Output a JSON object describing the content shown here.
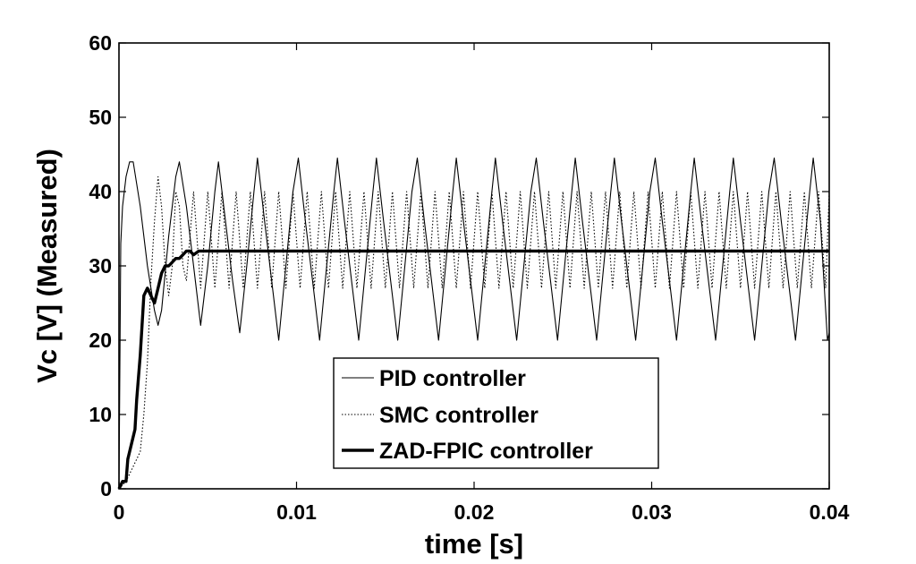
{
  "chart_data": {
    "type": "line",
    "title": "",
    "xlabel": "time [s]",
    "ylabel": "Vc [V] (Measured)",
    "xlim": [
      0,
      0.04
    ],
    "ylim": [
      0,
      60
    ],
    "xticks": [
      0,
      0.01,
      0.02,
      0.03,
      0.04
    ],
    "xtick_labels": [
      "0",
      "0.01",
      "0.02",
      "0.03",
      "0.04"
    ],
    "yticks": [
      0,
      10,
      20,
      30,
      40,
      50,
      60
    ],
    "ytick_labels": [
      "0",
      "10",
      "20",
      "30",
      "40",
      "50",
      "60"
    ],
    "grid": false,
    "legend_position": "bottom-center",
    "series": [
      {
        "name": "PID controller",
        "style": "solid-thin",
        "color": "#000000",
        "points": [
          [
            0,
            0
          ],
          [
            0.0001,
            33
          ],
          [
            0.0002,
            38
          ],
          [
            0.0004,
            42
          ],
          [
            0.0006,
            44
          ],
          [
            0.0008,
            44
          ],
          [
            0.0012,
            38
          ],
          [
            0.0016,
            30
          ],
          [
            0.002,
            24
          ],
          [
            0.0022,
            22
          ],
          [
            0.0024,
            24
          ],
          [
            0.0028,
            34
          ],
          [
            0.0032,
            42
          ],
          [
            0.0034,
            44
          ],
          [
            0.0038,
            38
          ],
          [
            0.0042,
            30
          ],
          [
            0.0046,
            22
          ],
          [
            0.005,
            30
          ],
          [
            0.0054,
            40
          ],
          [
            0.0056,
            44
          ],
          [
            0.006,
            36
          ],
          [
            0.0064,
            28
          ],
          [
            0.0068,
            21
          ],
          [
            0.0072,
            30
          ],
          [
            0.0076,
            40
          ],
          [
            0.0078,
            44.5
          ],
          [
            0.0082,
            36
          ],
          [
            0.0086,
            28
          ],
          [
            0.009,
            20
          ],
          [
            0.0094,
            30
          ],
          [
            0.0098,
            40
          ],
          [
            0.0101,
            44.5
          ],
          [
            0.0105,
            36
          ],
          [
            0.0109,
            28
          ],
          [
            0.0113,
            20
          ],
          [
            0.0117,
            30
          ],
          [
            0.0121,
            40
          ],
          [
            0.0123,
            44.5
          ],
          [
            0.0127,
            36
          ],
          [
            0.0131,
            28
          ],
          [
            0.0135,
            20
          ],
          [
            0.0139,
            30
          ],
          [
            0.0143,
            40
          ],
          [
            0.0145,
            44.5
          ],
          [
            0.0149,
            36
          ],
          [
            0.0153,
            28
          ],
          [
            0.0157,
            20
          ],
          [
            0.0161,
            30
          ],
          [
            0.0165,
            40
          ],
          [
            0.0168,
            44.5
          ],
          [
            0.0172,
            36
          ],
          [
            0.0176,
            28
          ],
          [
            0.018,
            20
          ],
          [
            0.0184,
            30
          ],
          [
            0.0188,
            40
          ],
          [
            0.019,
            44.5
          ],
          [
            0.0194,
            36
          ],
          [
            0.0198,
            28
          ],
          [
            0.0202,
            20
          ],
          [
            0.0206,
            30
          ],
          [
            0.021,
            40
          ],
          [
            0.0212,
            44.5
          ],
          [
            0.0216,
            36
          ],
          [
            0.022,
            28
          ],
          [
            0.0224,
            20
          ],
          [
            0.0228,
            30
          ],
          [
            0.0232,
            40
          ],
          [
            0.0235,
            44.5
          ],
          [
            0.0239,
            36
          ],
          [
            0.0243,
            28
          ],
          [
            0.0247,
            20
          ],
          [
            0.0251,
            30
          ],
          [
            0.0255,
            40
          ],
          [
            0.0257,
            44.5
          ],
          [
            0.0261,
            36
          ],
          [
            0.0265,
            28
          ],
          [
            0.0269,
            20
          ],
          [
            0.0273,
            30
          ],
          [
            0.0277,
            40
          ],
          [
            0.0279,
            44.5
          ],
          [
            0.0283,
            36
          ],
          [
            0.0287,
            28
          ],
          [
            0.0291,
            20
          ],
          [
            0.0295,
            30
          ],
          [
            0.0299,
            40
          ],
          [
            0.0302,
            44.5
          ],
          [
            0.0306,
            36
          ],
          [
            0.031,
            28
          ],
          [
            0.0314,
            20
          ],
          [
            0.0318,
            30
          ],
          [
            0.0322,
            40
          ],
          [
            0.0324,
            44.5
          ],
          [
            0.0328,
            36
          ],
          [
            0.0332,
            28
          ],
          [
            0.0336,
            20
          ],
          [
            0.034,
            30
          ],
          [
            0.0344,
            40
          ],
          [
            0.0346,
            44.5
          ],
          [
            0.035,
            36
          ],
          [
            0.0354,
            28
          ],
          [
            0.0358,
            20
          ],
          [
            0.0362,
            30
          ],
          [
            0.0366,
            40
          ],
          [
            0.0369,
            44.5
          ],
          [
            0.0373,
            36
          ],
          [
            0.0377,
            28
          ],
          [
            0.0381,
            20
          ],
          [
            0.0385,
            30
          ],
          [
            0.0389,
            40
          ],
          [
            0.0391,
            44.5
          ],
          [
            0.0395,
            36
          ],
          [
            0.0399,
            20
          ],
          [
            0.04,
            21
          ]
        ]
      },
      {
        "name": "SMC controller",
        "style": "dotted",
        "color": "#000000",
        "points": [
          [
            0,
            0
          ],
          [
            0.0004,
            1
          ],
          [
            0.0008,
            3
          ],
          [
            0.0012,
            5
          ],
          [
            0.0014,
            10
          ],
          [
            0.0016,
            17
          ],
          [
            0.0018,
            28
          ],
          [
            0.002,
            36
          ],
          [
            0.0022,
            42
          ],
          [
            0.0024,
            38
          ],
          [
            0.0026,
            30
          ],
          [
            0.0028,
            26
          ],
          [
            0.003,
            30
          ],
          [
            0.0032,
            40
          ],
          [
            0.0034,
            38
          ],
          [
            0.0036,
            30
          ],
          [
            0.0038,
            28
          ],
          [
            0.0042,
            40
          ],
          [
            0.0046,
            27
          ],
          [
            0.005,
            40
          ],
          [
            0.0054,
            27
          ],
          [
            0.0058,
            40
          ],
          [
            0.0062,
            27
          ],
          [
            0.0066,
            40
          ],
          [
            0.007,
            27
          ],
          [
            0.0074,
            40
          ],
          [
            0.0078,
            27
          ],
          [
            0.0082,
            40
          ],
          [
            0.0086,
            27
          ],
          [
            0.009,
            40
          ],
          [
            0.0094,
            27
          ],
          [
            0.0098,
            40
          ],
          [
            0.0102,
            27
          ],
          [
            0.0106,
            40
          ],
          [
            0.011,
            27
          ],
          [
            0.0114,
            40
          ],
          [
            0.0118,
            27
          ],
          [
            0.0122,
            40
          ],
          [
            0.0126,
            27
          ],
          [
            0.013,
            40
          ],
          [
            0.0134,
            27
          ],
          [
            0.0138,
            40
          ],
          [
            0.0142,
            27
          ],
          [
            0.0146,
            40
          ],
          [
            0.015,
            27
          ],
          [
            0.0154,
            40
          ],
          [
            0.0158,
            27
          ],
          [
            0.0162,
            40
          ],
          [
            0.0166,
            27
          ],
          [
            0.017,
            40
          ],
          [
            0.0174,
            27
          ],
          [
            0.0178,
            40
          ],
          [
            0.0182,
            27
          ],
          [
            0.0186,
            40
          ],
          [
            0.019,
            27
          ],
          [
            0.0194,
            40
          ],
          [
            0.0198,
            27
          ],
          [
            0.0202,
            40
          ],
          [
            0.0206,
            27
          ],
          [
            0.021,
            40
          ],
          [
            0.0214,
            27
          ],
          [
            0.0218,
            40
          ],
          [
            0.0222,
            27
          ],
          [
            0.0226,
            40
          ],
          [
            0.023,
            27
          ],
          [
            0.0234,
            40
          ],
          [
            0.0238,
            27
          ],
          [
            0.0242,
            40
          ],
          [
            0.0246,
            27
          ],
          [
            0.025,
            40
          ],
          [
            0.0254,
            27
          ],
          [
            0.0258,
            40
          ],
          [
            0.0262,
            27
          ],
          [
            0.0266,
            40
          ],
          [
            0.027,
            27
          ],
          [
            0.0274,
            40
          ],
          [
            0.0278,
            27
          ],
          [
            0.0282,
            40
          ],
          [
            0.0286,
            27
          ],
          [
            0.029,
            40
          ],
          [
            0.0294,
            27
          ],
          [
            0.0298,
            40
          ],
          [
            0.0302,
            27
          ],
          [
            0.0306,
            40
          ],
          [
            0.031,
            27
          ],
          [
            0.0314,
            40
          ],
          [
            0.0318,
            27
          ],
          [
            0.0322,
            40
          ],
          [
            0.0326,
            27
          ],
          [
            0.033,
            40
          ],
          [
            0.0334,
            27
          ],
          [
            0.0338,
            40
          ],
          [
            0.0342,
            27
          ],
          [
            0.0346,
            40
          ],
          [
            0.035,
            27
          ],
          [
            0.0354,
            40
          ],
          [
            0.0358,
            27
          ],
          [
            0.0362,
            40
          ],
          [
            0.0366,
            27
          ],
          [
            0.037,
            40
          ],
          [
            0.0374,
            27
          ],
          [
            0.0378,
            40
          ],
          [
            0.0382,
            27
          ],
          [
            0.0386,
            40
          ],
          [
            0.039,
            27
          ],
          [
            0.0394,
            40
          ],
          [
            0.0398,
            27
          ],
          [
            0.04,
            40
          ]
        ]
      },
      {
        "name": "ZAD-FPIC controller",
        "style": "solid-thick",
        "color": "#000000",
        "points": [
          [
            0,
            0
          ],
          [
            0.0002,
            1
          ],
          [
            0.0004,
            1
          ],
          [
            0.0005,
            4
          ],
          [
            0.0007,
            6
          ],
          [
            0.0009,
            8
          ],
          [
            0.001,
            12
          ],
          [
            0.0012,
            18
          ],
          [
            0.0014,
            26
          ],
          [
            0.0016,
            27
          ],
          [
            0.0018,
            26
          ],
          [
            0.002,
            25
          ],
          [
            0.0022,
            27
          ],
          [
            0.0024,
            29
          ],
          [
            0.0026,
            30
          ],
          [
            0.0028,
            30
          ],
          [
            0.003,
            30.5
          ],
          [
            0.0032,
            31
          ],
          [
            0.0034,
            31
          ],
          [
            0.0036,
            31.5
          ],
          [
            0.0038,
            32
          ],
          [
            0.004,
            32
          ],
          [
            0.0042,
            31.5
          ],
          [
            0.0045,
            32
          ],
          [
            0.005,
            32
          ],
          [
            0.006,
            32
          ],
          [
            0.01,
            32
          ],
          [
            0.02,
            32
          ],
          [
            0.03,
            32
          ],
          [
            0.04,
            32
          ]
        ]
      }
    ]
  }
}
